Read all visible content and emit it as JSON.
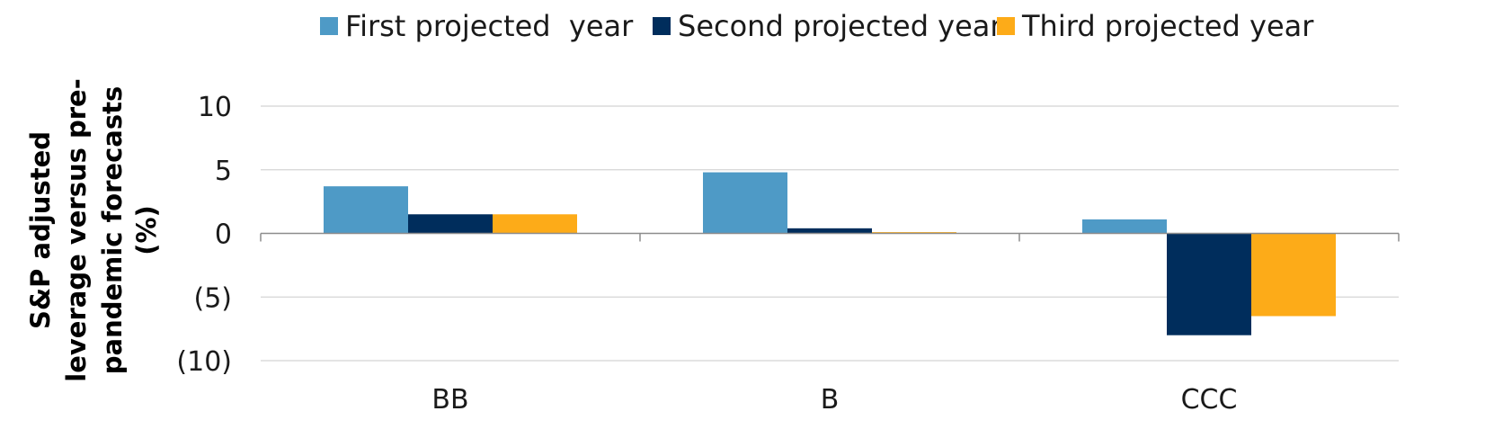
{
  "chart_data": {
    "type": "bar",
    "categories": [
      "BB",
      "B",
      "CCC"
    ],
    "series": [
      {
        "name": "First projected  year",
        "color": "#4e9ac6",
        "values": [
          3.7,
          4.8,
          1.1
        ]
      },
      {
        "name": "Second projected year",
        "color": "#002d5c",
        "values": [
          1.5,
          0.4,
          -8.0
        ]
      },
      {
        "name": "Third projected year",
        "color": "#fdab18",
        "values": [
          1.5,
          0.1,
          -6.5
        ]
      }
    ],
    "ylabel_lines": [
      "S&P adjusted",
      "leverage versus pre-",
      "pandemic forecasts",
      "(%)"
    ],
    "ylim": [
      -10,
      10
    ],
    "yticks": [
      10,
      5,
      0,
      -5,
      -10
    ],
    "ytick_labels": [
      "10",
      "5",
      "0",
      "(5)",
      "(10)"
    ],
    "grid": true,
    "legend_position": "top"
  }
}
